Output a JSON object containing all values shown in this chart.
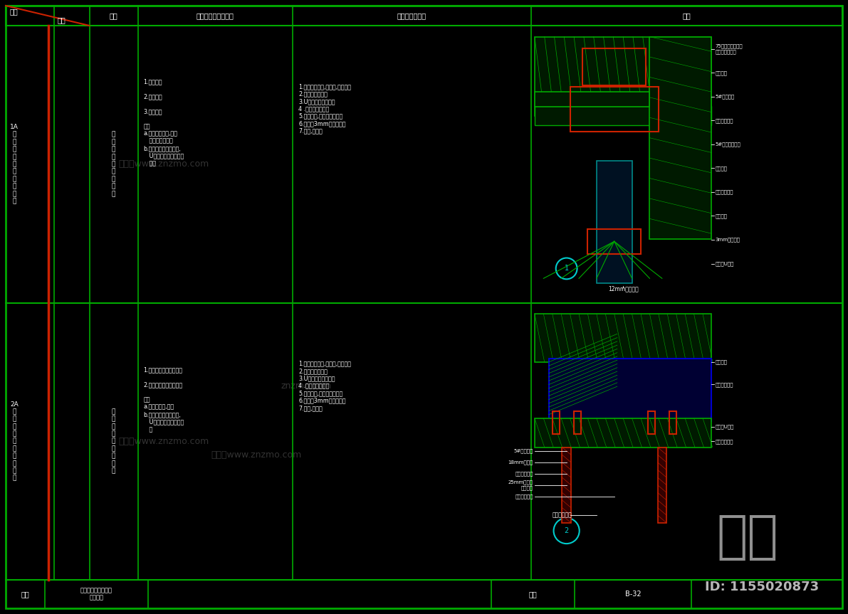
{
  "bg_color": "#000000",
  "gc": "#00aa00",
  "rc": "#cc2200",
  "tc": "#ffffff",
  "gray": "#888888",
  "cyan": "#00cccc",
  "blue_glass": "#000033",
  "dark_green": "#002200",
  "header_labels": [
    "编号",
    "类别",
    "名称",
    "适用部位及注意事项",
    "用料及分层做法",
    "简图"
  ],
  "row1_id": "1A\n墙\n面\n相\n同\n材\n质\n工\n艺\n做\n法",
  "row1_name": "玻\n璃\n窗\n户\n与\n墙\n面\n相\n接",
  "row1_notes": "1.玻璃窗户\n\n2.粘贴垫垫\n\n3.玻璃隔断\n\n注：\na.不同使用铝合,玻璃\n   的选材不一样。\nb.玻璃高度及受力不同,\n   U型槽的深度要求也不\n   同。",
  "row1_method": "1.玻璃物料选择,无划痕,无损伤。\n2.钢床基层预埋。\n3.U型槽的得排安装。\n4 .弹性胶垫填充。\n5.安装玻璃,透明胶条填充。\n6.收口处3mm打胶处理。\n7.清理,保护。",
  "row2_id": "2A\n墙\n面\n相\n同\n材\n质\n工\n艺\n做\n法",
  "row2_name": "玻\n璃\n窗\n户\n与\n墙\n面\n相\n接",
  "row2_notes": "1.有声学要求的玻璃窗户\n\n2.有声学要求的玻璃隔断\n\n注：\na.玻璃的选材,厚度\nb.玻璃高度及受力不同,\n   U型槽的深度要求也不\n   同",
  "row2_method": "1.玻璃物料选择,无划痕,无损伤。\n2.钢床基层预埋。\n3.U型槽的得排安装。\n4 .弹性胶垫填充。\n5.安装玻璃,透明胶条填充。\n6.收口处3mm打胶处理。\n7.清理,保护。",
  "right_labels_row1": [
    "75系轻钢龙骨内置\n防火布包覆音棉",
    "石材墙面",
    "5#镀锌角钢",
    "不锈钢干挂件",
    "5#镀锌角钢固定",
    "弹性胶垫",
    "透明胶条填充",
    "泡沫填充",
    "3mm打胶处理",
    "不锈钢U型槽"
  ],
  "bottom_label_row1": "12mm钢化玻璃",
  "right_labels_row2": [
    "弹性胶垫",
    "透明胶条填充",
    "不锈钢U型槽",
    "双层中空玻璃"
  ],
  "left_labels_row2": [
    "5#镀锌方管",
    "18mm多层板",
    "防火防潮三度",
    "25mm玻璃棉\n包防火布",
    "双层中空玻璃"
  ],
  "footer_name": "图名",
  "footer_title": "玻璃窗户与墙面相接\n工艺做法",
  "footer_page_label": "页次",
  "footer_page": "B-32"
}
